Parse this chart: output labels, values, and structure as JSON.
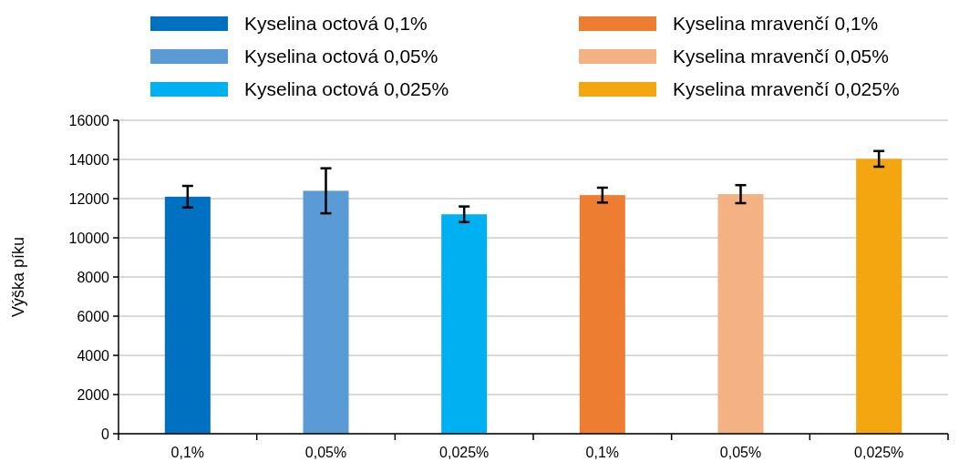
{
  "chart_data": {
    "type": "bar",
    "ylabel": "Výška píku",
    "categories": [
      "0,1%",
      "0,05%",
      "0,025%",
      "0,1%",
      "0,05%",
      "0,025%"
    ],
    "series": [
      {
        "name": "Kyselina octová 0,1%",
        "color": "#0070c0",
        "values": [
          12100,
          null,
          null,
          null,
          null,
          null
        ],
        "errors": [
          550,
          null,
          null,
          null,
          null,
          null
        ]
      },
      {
        "name": "Kyselina octová 0,05%",
        "color": "#5b9bd5",
        "values": [
          null,
          12400,
          null,
          null,
          null,
          null
        ],
        "errors": [
          null,
          1150,
          null,
          null,
          null,
          null
        ]
      },
      {
        "name": "Kyselina octová 0,025%",
        "color": "#00b0f0",
        "values": [
          null,
          null,
          11200,
          null,
          null,
          null
        ],
        "errors": [
          null,
          null,
          400,
          null,
          null,
          null
        ]
      },
      {
        "name": "Kyselina mravenčí 0,1%",
        "color": "#ed7d31",
        "values": [
          null,
          null,
          null,
          12180,
          null,
          null
        ],
        "errors": [
          null,
          null,
          null,
          380,
          null,
          null
        ]
      },
      {
        "name": "Kyselina mravenčí 0,05%",
        "color": "#f4b183",
        "values": [
          null,
          null,
          null,
          null,
          12230,
          null
        ],
        "errors": [
          null,
          null,
          null,
          null,
          460,
          null
        ]
      },
      {
        "name": "Kyselina mravenčí 0,025%",
        "color": "#f4a610",
        "values": [
          null,
          null,
          null,
          null,
          null,
          14030
        ],
        "errors": [
          null,
          null,
          null,
          null,
          null,
          400
        ]
      }
    ],
    "ylim": [
      0,
      16000
    ],
    "yticks": [
      0,
      2000,
      4000,
      6000,
      8000,
      10000,
      12000,
      14000,
      16000
    ],
    "grid": "y",
    "legend": "top"
  }
}
